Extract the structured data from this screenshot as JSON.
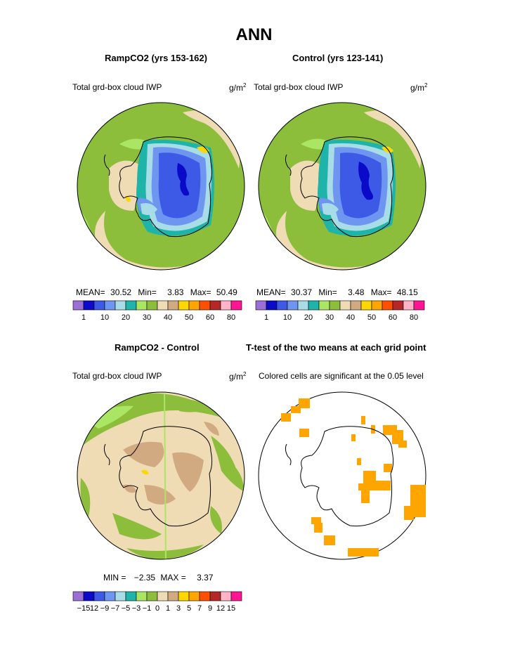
{
  "title": "ANN",
  "panels": [
    {
      "title": "RampCO2 (yrs 153-162)",
      "left_label": "Total grd-box cloud IWP",
      "unit": "g/m",
      "unit_exp": "2",
      "stats": {
        "mean_label": "MEAN=",
        "mean": "30.52",
        "min_label": "Min=",
        "min": "3.83",
        "max_label": "Max=",
        "max": "50.49"
      }
    },
    {
      "title": "Control (yrs 123-141)",
      "left_label": "Total grd-box cloud IWP",
      "unit": "g/m",
      "unit_exp": "2",
      "stats": {
        "mean_label": "MEAN=",
        "mean": "30.37",
        "min_label": "Min=",
        "min": "3.48",
        "max_label": "Max=",
        "max": "48.15"
      }
    },
    {
      "title": "RampCO2 - Control",
      "left_label": "Total grd-box cloud IWP",
      "unit": "g/m",
      "unit_exp": "2",
      "stats": {
        "min_label": "MIN =",
        "min": "−2.35",
        "max_label": "MAX =",
        "max": "3.37"
      }
    },
    {
      "title": "T-test of the two means at each grid point",
      "left_label": "Colored cells are significant at the 0.05 level"
    }
  ],
  "colorbar_abs": {
    "colors": [
      "#9b6fd6",
      "#0a0ac8",
      "#3c5ae6",
      "#6e96f0",
      "#a8dce6",
      "#1eb4aa",
      "#aae664",
      "#8cbe3c",
      "#f0dcb4",
      "#d2aa82",
      "#ffd700",
      "#ffa500",
      "#ff5000",
      "#b42828",
      "#ffb4c8",
      "#ff1493"
    ],
    "tick_labels": [
      "1",
      "10",
      "20",
      "30",
      "40",
      "50",
      "60",
      "80"
    ]
  },
  "colorbar_diff": {
    "colors": [
      "#9b6fd6",
      "#0a0ac8",
      "#3c5ae6",
      "#6e96f0",
      "#a8dce6",
      "#1eb4aa",
      "#aae664",
      "#8cbe3c",
      "#f0dcb4",
      "#d2aa82",
      "#ffd700",
      "#ffa500",
      "#ff5000",
      "#b42828",
      "#ffb4c8",
      "#ff1493"
    ],
    "tick_labels": [
      "−15",
      "12",
      "−9",
      "−7",
      "−5",
      "−3",
      "−1",
      "0",
      "1",
      "3",
      "5",
      "7",
      "9",
      "12",
      "15"
    ]
  },
  "colors": {
    "ocean_green": "#8cbe3c",
    "tan": "#f0dcb4",
    "sig": "#ffa500"
  }
}
